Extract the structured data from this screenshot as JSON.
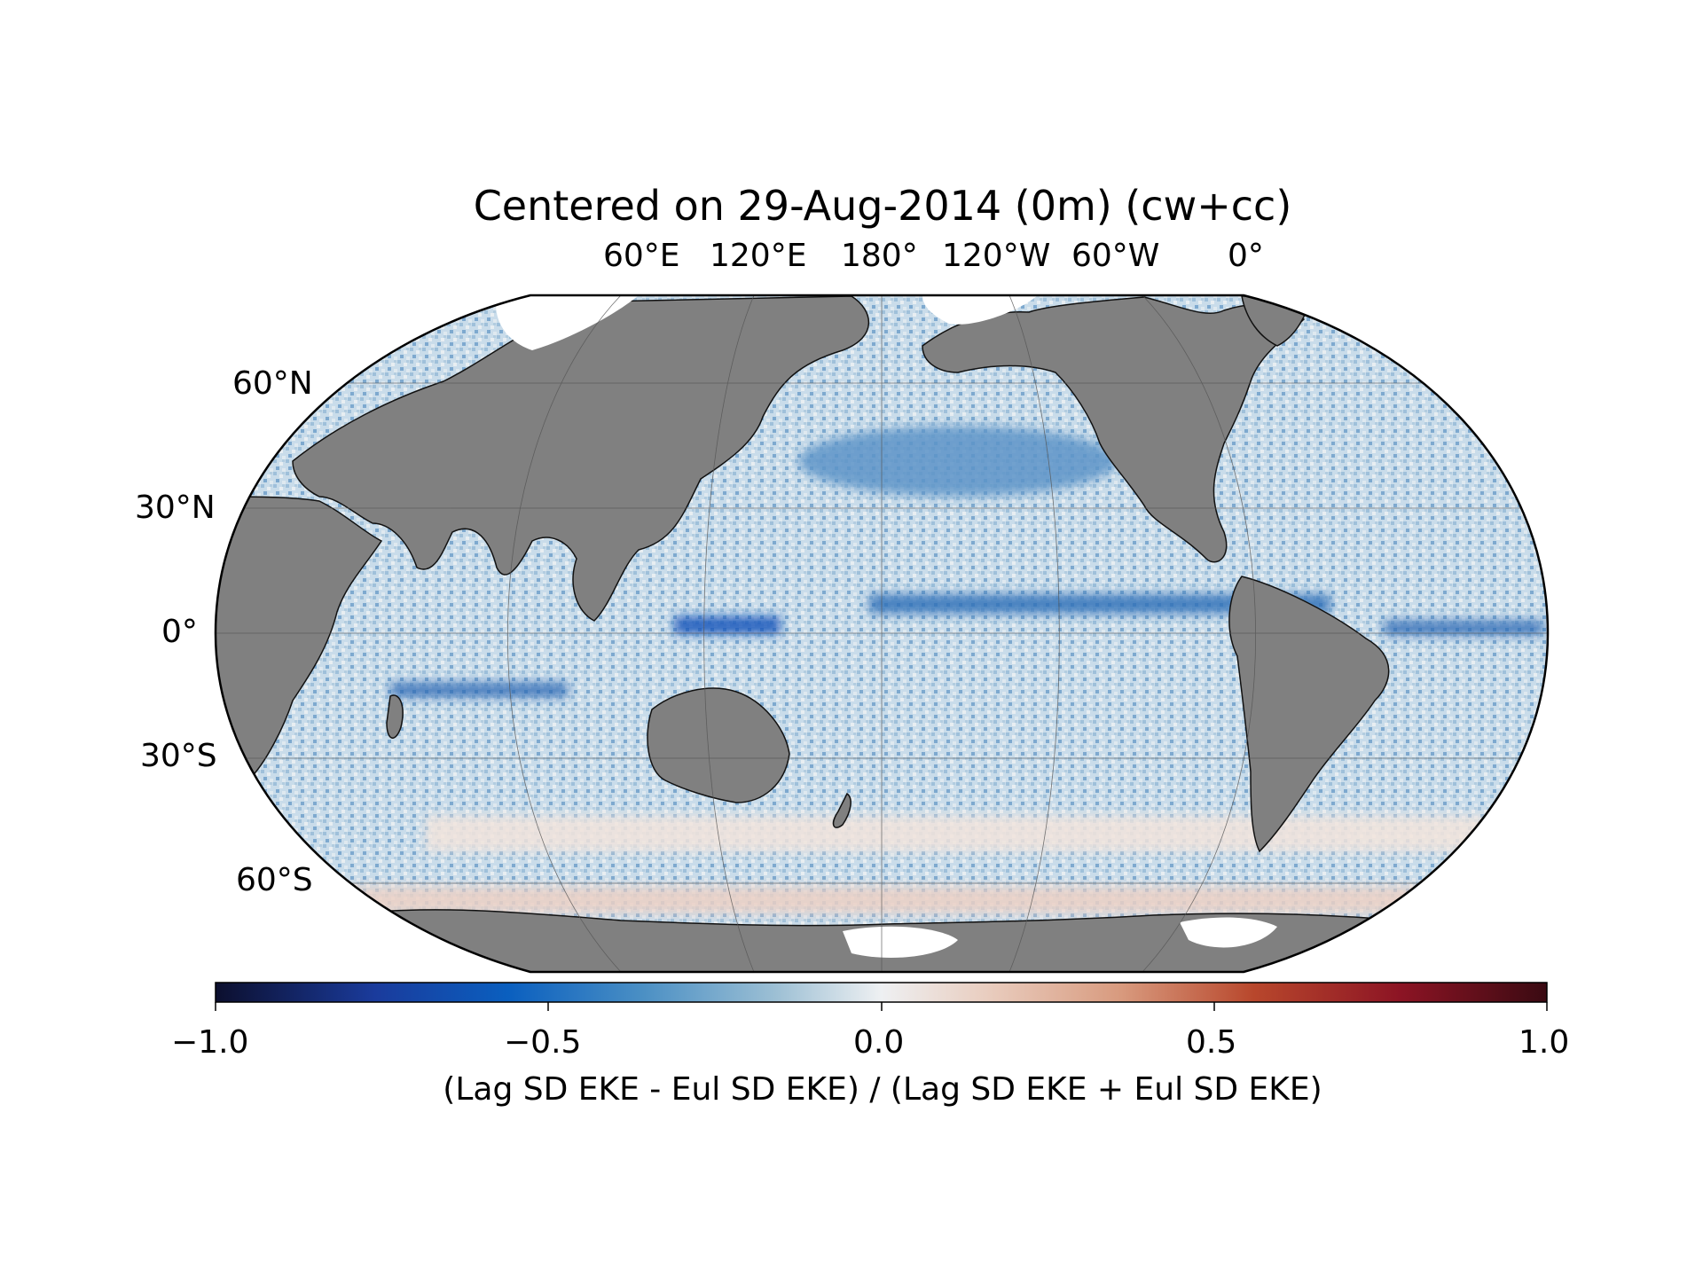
{
  "title": "Centered on 29-Aug-2014 (0m) (cw+cc)",
  "longitude_labels": [
    "60°E",
    "120°E",
    "180°",
    "120°W",
    "60°W",
    "0°"
  ],
  "latitude_labels": [
    "60°N",
    "30°N",
    "0°",
    "30°S",
    "60°S"
  ],
  "colorbar": {
    "label": "(Lag SD EKE - Eul SD EKE) / (Lag SD EKE + Eul SD EKE)",
    "ticks": [
      "−1.0",
      "−0.5",
      "0.0",
      "0.5",
      "1.0"
    ],
    "range": [
      -1.0,
      1.0
    ],
    "colors": [
      "#0c0f2e",
      "#1a3b9c",
      "#0a5fbf",
      "#4a8fc4",
      "#9cbfd4",
      "#e6ecef",
      "#f2e4dc",
      "#d89a7e",
      "#b8472c",
      "#8c1424",
      "#3a0a12"
    ]
  },
  "map": {
    "projection": "Robinson",
    "central_longitude": "180°",
    "land_color": "#808080",
    "ocean_colors": [
      "#3f80c0",
      "#8db3d6",
      "#c8dcea",
      "#eef0f2",
      "#f1d5cb",
      "#0b50b8"
    ]
  }
}
